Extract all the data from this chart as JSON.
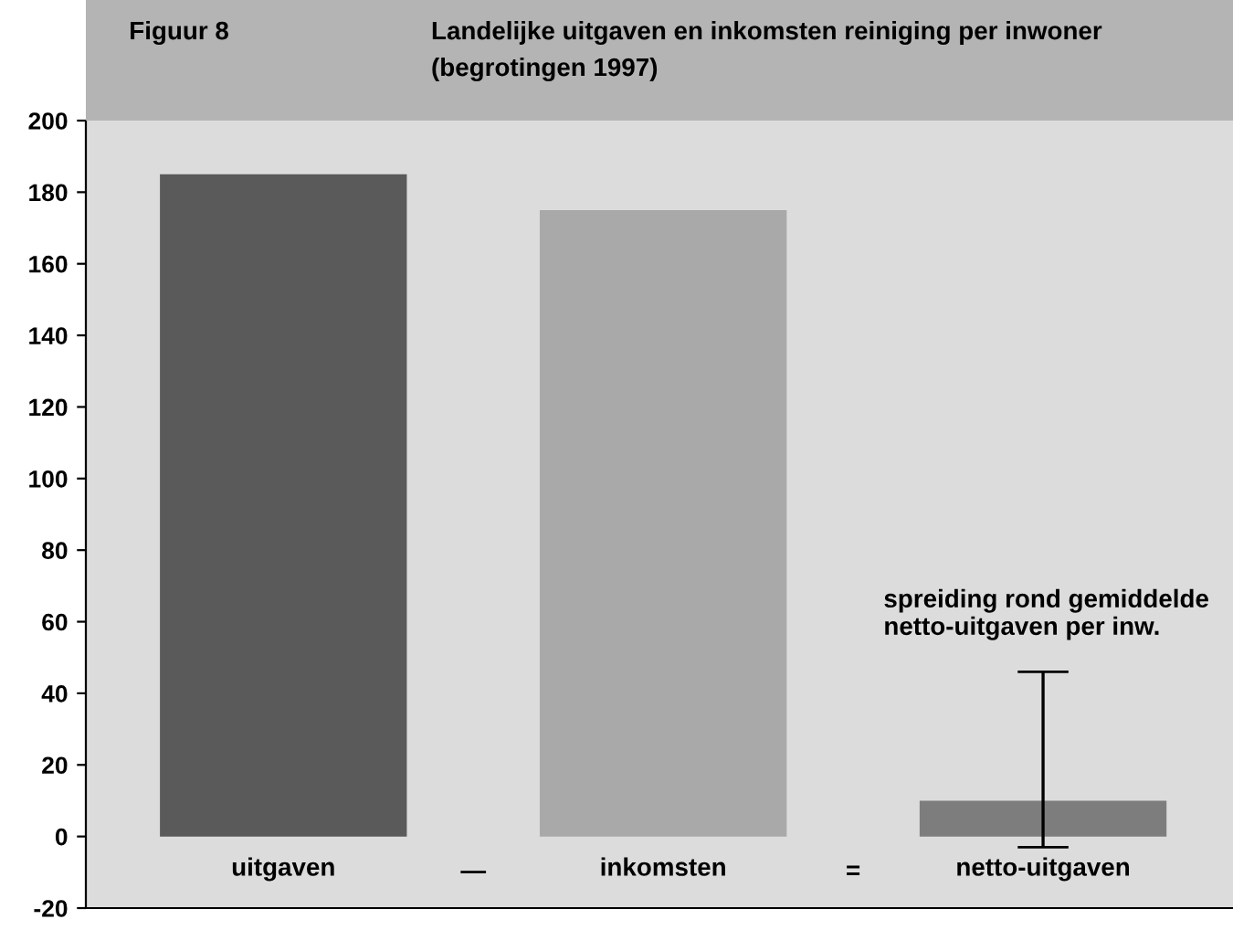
{
  "chart_data": {
    "type": "bar",
    "title": "Landelijke uitgaven en inkomsten reiniging per inwoner",
    "subtitle": "(begrotingen 1997)",
    "categories": [
      "uitgaven",
      "inkomsten",
      "netto-uitgaven"
    ],
    "values": [
      185,
      175,
      10
    ],
    "colors": [
      "#5a5a5a",
      "#a9a9a9",
      "#7d7d7d"
    ],
    "errors": [
      null,
      null,
      [
        -3,
        46
      ]
    ],
    "ylim": [
      -20,
      200
    ],
    "yticks": [
      -20,
      0,
      20,
      40,
      60,
      80,
      100,
      120,
      140,
      160,
      180,
      200
    ],
    "grid": false,
    "annotations": [
      "Figuur 8",
      "—",
      "=",
      "spreiding rond gemiddelde\nnetto-uitgaven per inw."
    ]
  }
}
